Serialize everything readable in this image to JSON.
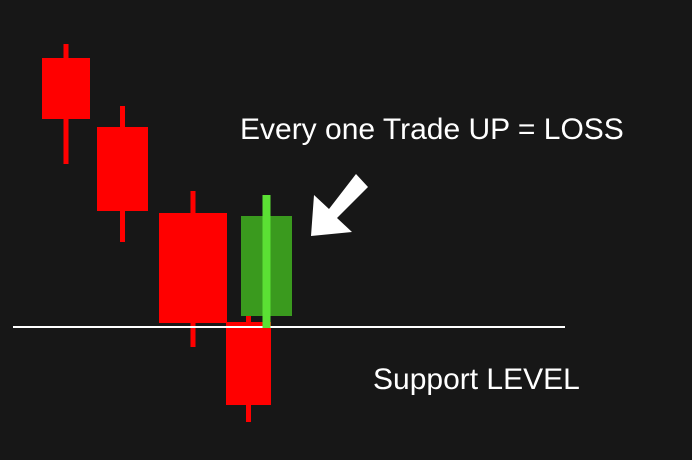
{
  "chart_data": {
    "type": "candlestick",
    "background": "#171717",
    "colors": {
      "down": "#ff0000",
      "up": "#3a9a1e",
      "up_wick": "#5be034",
      "line": "#ffffff",
      "arrow": "#ffffff"
    },
    "candles": [
      {
        "open": 402,
        "close": 341,
        "high": 416,
        "low": 296,
        "direction": "down"
      },
      {
        "open": 333,
        "close": 249,
        "high": 354,
        "low": 218,
        "direction": "down"
      },
      {
        "open": 247,
        "close": 137,
        "high": 269,
        "low": 113,
        "direction": "down"
      },
      {
        "open": 144,
        "close": 244,
        "high": 265,
        "low": 132,
        "direction": "up"
      },
      {
        "open": 138,
        "close": 55,
        "high": 147,
        "low": 38,
        "direction": "down"
      }
    ],
    "support_level": 133,
    "y_range": [
      0,
      460
    ],
    "annotations": {
      "trade": "Every one Trade UP = LOSS",
      "support": "Support LEVEL"
    },
    "arrow_icon": "arrow-down-left-icon"
  }
}
